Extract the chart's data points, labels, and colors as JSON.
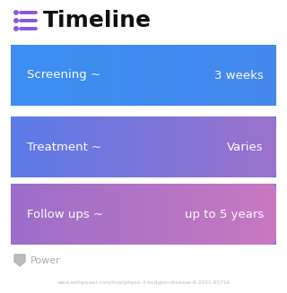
{
  "title": "Timeline",
  "title_fontsize": 18,
  "title_color": "#111111",
  "icon_color": "#8855DD",
  "background_color": "#ffffff",
  "rows": [
    {
      "label": "Screening ~",
      "value": "3 weeks",
      "color_left": "#3D8EF0",
      "color_right": "#4488EE"
    },
    {
      "label": "Treatment ~",
      "value": "Varies",
      "color_left": "#5B7AE8",
      "color_right": "#9B72CC"
    },
    {
      "label": "Follow ups ~",
      "value": "up to 5 years",
      "color_left": "#9B6EC8",
      "color_right": "#C878C0"
    }
  ],
  "text_color": "#ffffff",
  "label_fontsize": 9.5,
  "value_fontsize": 9.5,
  "footer_text": "www.withpower.com/trial/phase-3-hodgkin-disease-8-2021-85716",
  "footer_color": "#bbbbbb",
  "footer_fontsize": 4.2,
  "power_text": "Power",
  "power_color": "#aaaaaa",
  "power_fontsize": 8
}
